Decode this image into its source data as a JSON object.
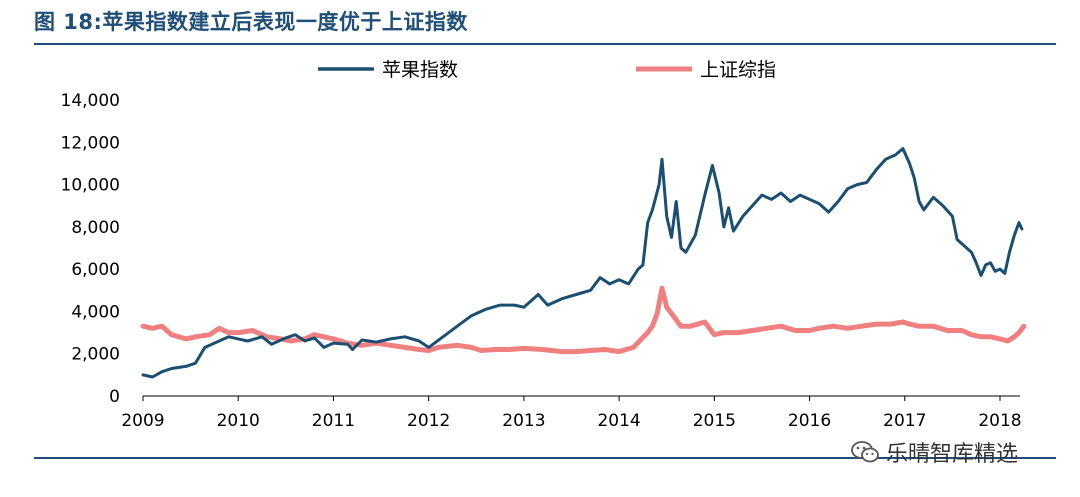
{
  "title": "图 18:苹果指数建立后表现一度优于上证指数",
  "watermark": "乐晴智库精选",
  "colors": {
    "accent": "#1f4e79",
    "series1": "#1a4f72",
    "series2": "#f08080"
  },
  "chart_data": {
    "type": "line",
    "xlabel": "",
    "ylabel": "",
    "xlim": [
      2009.0,
      2018.3
    ],
    "ylim": [
      0,
      14000
    ],
    "xticks": [
      "2009",
      "2010",
      "2011",
      "2012",
      "2013",
      "2014",
      "2015",
      "2016",
      "2017",
      "2018"
    ],
    "yticks": [
      "0",
      "2,000",
      "4,000",
      "6,000",
      "8,000",
      "10,000",
      "12,000",
      "14,000"
    ],
    "legend": "top-center",
    "grid": false,
    "series": [
      {
        "name": "苹果指数",
        "color": "#1a4f72",
        "points": [
          [
            2009.0,
            1000
          ],
          [
            2009.1,
            900
          ],
          [
            2009.2,
            1150
          ],
          [
            2009.3,
            1300
          ],
          [
            2009.45,
            1400
          ],
          [
            2009.55,
            1550
          ],
          [
            2009.65,
            2300
          ],
          [
            2009.75,
            2500
          ],
          [
            2009.9,
            2800
          ],
          [
            2010.1,
            2600
          ],
          [
            2010.25,
            2800
          ],
          [
            2010.35,
            2450
          ],
          [
            2010.5,
            2750
          ],
          [
            2010.6,
            2900
          ],
          [
            2010.7,
            2600
          ],
          [
            2010.8,
            2750
          ],
          [
            2010.9,
            2300
          ],
          [
            2011.0,
            2500
          ],
          [
            2011.15,
            2450
          ],
          [
            2011.2,
            2200
          ],
          [
            2011.3,
            2650
          ],
          [
            2011.45,
            2550
          ],
          [
            2011.6,
            2700
          ],
          [
            2011.75,
            2800
          ],
          [
            2011.9,
            2600
          ],
          [
            2012.0,
            2300
          ],
          [
            2012.15,
            2800
          ],
          [
            2012.3,
            3300
          ],
          [
            2012.45,
            3800
          ],
          [
            2012.6,
            4100
          ],
          [
            2012.75,
            4300
          ],
          [
            2012.9,
            4300
          ],
          [
            2013.0,
            4200
          ],
          [
            2013.15,
            4800
          ],
          [
            2013.25,
            4300
          ],
          [
            2013.4,
            4600
          ],
          [
            2013.55,
            4800
          ],
          [
            2013.7,
            5000
          ],
          [
            2013.8,
            5600
          ],
          [
            2013.9,
            5300
          ],
          [
            2014.0,
            5500
          ],
          [
            2014.1,
            5300
          ],
          [
            2014.2,
            6000
          ],
          [
            2014.25,
            6200
          ],
          [
            2014.3,
            8200
          ],
          [
            2014.35,
            8800
          ],
          [
            2014.42,
            10000
          ],
          [
            2014.45,
            11200
          ],
          [
            2014.5,
            8500
          ],
          [
            2014.55,
            7500
          ],
          [
            2014.6,
            9200
          ],
          [
            2014.65,
            7000
          ],
          [
            2014.7,
            6800
          ],
          [
            2014.8,
            7600
          ],
          [
            2014.9,
            9500
          ],
          [
            2014.98,
            10900
          ],
          [
            2015.05,
            9600
          ],
          [
            2015.1,
            8000
          ],
          [
            2015.15,
            8900
          ],
          [
            2015.2,
            7800
          ],
          [
            2015.3,
            8500
          ],
          [
            2015.4,
            9000
          ],
          [
            2015.5,
            9500
          ],
          [
            2015.6,
            9300
          ],
          [
            2015.7,
            9600
          ],
          [
            2015.8,
            9200
          ],
          [
            2015.9,
            9500
          ],
          [
            2016.0,
            9300
          ],
          [
            2016.1,
            9100
          ],
          [
            2016.2,
            8700
          ],
          [
            2016.3,
            9200
          ],
          [
            2016.4,
            9800
          ],
          [
            2016.5,
            10000
          ],
          [
            2016.6,
            10100
          ],
          [
            2016.7,
            10700
          ],
          [
            2016.8,
            11200
          ],
          [
            2016.9,
            11400
          ],
          [
            2016.98,
            11700
          ],
          [
            2017.05,
            11000
          ],
          [
            2017.1,
            10300
          ],
          [
            2017.15,
            9200
          ],
          [
            2017.2,
            8800
          ],
          [
            2017.3,
            9400
          ],
          [
            2017.4,
            9000
          ],
          [
            2017.5,
            8500
          ],
          [
            2017.55,
            7400
          ],
          [
            2017.6,
            7200
          ],
          [
            2017.7,
            6800
          ],
          [
            2017.75,
            6300
          ],
          [
            2017.8,
            5700
          ],
          [
            2017.85,
            6200
          ],
          [
            2017.9,
            6300
          ],
          [
            2017.95,
            5900
          ],
          [
            2018.0,
            6000
          ],
          [
            2018.05,
            5800
          ],
          [
            2018.1,
            6800
          ],
          [
            2018.15,
            7600
          ],
          [
            2018.2,
            8200
          ],
          [
            2018.23,
            7900
          ]
        ]
      },
      {
        "name": "上证综指",
        "color": "#f08080",
        "points": [
          [
            2009.0,
            3300
          ],
          [
            2009.1,
            3200
          ],
          [
            2009.2,
            3300
          ],
          [
            2009.3,
            2900
          ],
          [
            2009.45,
            2700
          ],
          [
            2009.55,
            2800
          ],
          [
            2009.7,
            2900
          ],
          [
            2009.8,
            3200
          ],
          [
            2009.9,
            3000
          ],
          [
            2010.0,
            3000
          ],
          [
            2010.15,
            3100
          ],
          [
            2010.3,
            2800
          ],
          [
            2010.45,
            2700
          ],
          [
            2010.55,
            2600
          ],
          [
            2010.7,
            2700
          ],
          [
            2010.8,
            2900
          ],
          [
            2010.9,
            2800
          ],
          [
            2011.0,
            2700
          ],
          [
            2011.15,
            2500
          ],
          [
            2011.3,
            2400
          ],
          [
            2011.45,
            2500
          ],
          [
            2011.6,
            2400
          ],
          [
            2011.75,
            2300
          ],
          [
            2011.9,
            2200
          ],
          [
            2012.0,
            2150
          ],
          [
            2012.1,
            2300
          ],
          [
            2012.3,
            2400
          ],
          [
            2012.45,
            2300
          ],
          [
            2012.55,
            2150
          ],
          [
            2012.7,
            2200
          ],
          [
            2012.85,
            2200
          ],
          [
            2013.0,
            2250
          ],
          [
            2013.2,
            2200
          ],
          [
            2013.4,
            2100
          ],
          [
            2013.55,
            2100
          ],
          [
            2013.7,
            2150
          ],
          [
            2013.85,
            2200
          ],
          [
            2014.0,
            2100
          ],
          [
            2014.15,
            2300
          ],
          [
            2014.3,
            3000
          ],
          [
            2014.35,
            3300
          ],
          [
            2014.4,
            3900
          ],
          [
            2014.45,
            5100
          ],
          [
            2014.5,
            4200
          ],
          [
            2014.55,
            3900
          ],
          [
            2014.65,
            3300
          ],
          [
            2014.75,
            3300
          ],
          [
            2014.9,
            3500
          ],
          [
            2015.0,
            2900
          ],
          [
            2015.1,
            3000
          ],
          [
            2015.25,
            3000
          ],
          [
            2015.4,
            3100
          ],
          [
            2015.55,
            3200
          ],
          [
            2015.7,
            3300
          ],
          [
            2015.85,
            3100
          ],
          [
            2016.0,
            3100
          ],
          [
            2016.1,
            3200
          ],
          [
            2016.25,
            3300
          ],
          [
            2016.4,
            3200
          ],
          [
            2016.55,
            3300
          ],
          [
            2016.7,
            3400
          ],
          [
            2016.85,
            3400
          ],
          [
            2016.98,
            3500
          ],
          [
            2017.05,
            3400
          ],
          [
            2017.15,
            3300
          ],
          [
            2017.3,
            3300
          ],
          [
            2017.45,
            3100
          ],
          [
            2017.6,
            3100
          ],
          [
            2017.7,
            2900
          ],
          [
            2017.8,
            2800
          ],
          [
            2017.9,
            2800
          ],
          [
            2018.0,
            2700
          ],
          [
            2018.08,
            2600
          ],
          [
            2018.15,
            2800
          ],
          [
            2018.2,
            3000
          ],
          [
            2018.25,
            3300
          ]
        ]
      }
    ]
  }
}
